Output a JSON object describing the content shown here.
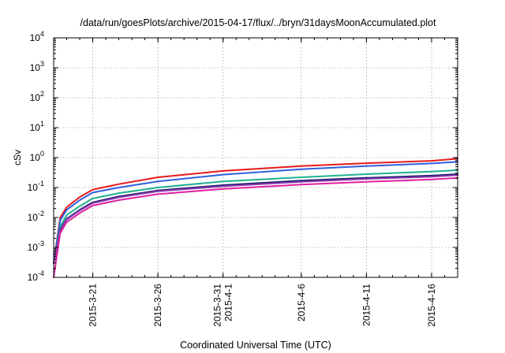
{
  "chart_data": {
    "type": "line",
    "title": "/data/run/goesPlots/archive/2015-04-17/flux/../bryn/31daysMoonAccumulated.plot",
    "xlabel": "Coordinated Universal Time (UTC)",
    "ylabel": "cSv",
    "y_scale": "log",
    "ylim": [
      0.0001,
      10000
    ],
    "xlim": [
      "2015-03-18",
      "2015-04-18"
    ],
    "grid": true,
    "legend": "none",
    "y_ticks": [
      {
        "base": "10",
        "exp": "-4"
      },
      {
        "base": "10",
        "exp": "-3"
      },
      {
        "base": "10",
        "exp": "-2"
      },
      {
        "base": "10",
        "exp": "-1"
      },
      {
        "base": "10",
        "exp": "0"
      },
      {
        "base": "10",
        "exp": "1"
      },
      {
        "base": "10",
        "exp": "2"
      },
      {
        "base": "10",
        "exp": "3"
      },
      {
        "base": "10",
        "exp": "4"
      }
    ],
    "x_ticks": [
      {
        "date": "2015-03-21",
        "lines": [
          "2015-3-21"
        ]
      },
      {
        "date": "2015-03-26",
        "lines": [
          "2015-3-26"
        ]
      },
      {
        "date": "2015-03-31",
        "lines": [
          "2015-3-31",
          "2015-4-1"
        ]
      },
      {
        "date": "2015-04-06",
        "lines": [
          "2015-4-6"
        ]
      },
      {
        "date": "2015-04-11",
        "lines": [
          "2015-4-11"
        ]
      },
      {
        "date": "2015-04-16",
        "lines": [
          "2015-4-16"
        ]
      }
    ],
    "series": [
      {
        "color": "#e8191c",
        "x": [
          "2015-03-18",
          "2015-03-18T12:00",
          "2015-03-19",
          "2015-03-20",
          "2015-03-21",
          "2015-03-23",
          "2015-03-26",
          "2015-03-31",
          "2015-04-06",
          "2015-04-11",
          "2015-04-16",
          "2015-04-18"
        ],
        "y": [
          0.0003,
          0.01,
          0.022,
          0.048,
          0.085,
          0.13,
          0.22,
          0.36,
          0.52,
          0.65,
          0.78,
          0.92
        ]
      },
      {
        "color": "#3060e0",
        "x": [
          "2015-03-18",
          "2015-03-18T12:00",
          "2015-03-19",
          "2015-03-20",
          "2015-03-21",
          "2015-03-23",
          "2015-03-26",
          "2015-03-31",
          "2015-04-06",
          "2015-04-11",
          "2015-04-16",
          "2015-04-18"
        ],
        "y": [
          0.0003,
          0.008,
          0.018,
          0.038,
          0.068,
          0.1,
          0.16,
          0.27,
          0.41,
          0.52,
          0.64,
          0.72
        ]
      },
      {
        "color": "#20b090",
        "x": [
          "2015-03-18",
          "2015-03-18T12:00",
          "2015-03-19",
          "2015-03-20",
          "2015-03-21",
          "2015-03-23",
          "2015-03-26",
          "2015-03-31",
          "2015-04-06",
          "2015-04-11",
          "2015-04-16",
          "2015-04-18"
        ],
        "y": [
          0.0003,
          0.005,
          0.012,
          0.024,
          0.043,
          0.065,
          0.1,
          0.16,
          0.22,
          0.28,
          0.34,
          0.38
        ]
      },
      {
        "color": "#1a1a66",
        "x": [
          "2015-03-18",
          "2015-03-18T12:00",
          "2015-03-19",
          "2015-03-20",
          "2015-03-21",
          "2015-03-23",
          "2015-03-26",
          "2015-03-31",
          "2015-04-06",
          "2015-04-11",
          "2015-04-16",
          "2015-04-18"
        ],
        "y": [
          0.0003,
          0.004,
          0.009,
          0.018,
          0.032,
          0.05,
          0.08,
          0.12,
          0.17,
          0.21,
          0.25,
          0.28
        ]
      },
      {
        "color": "#8a3ab0",
        "x": [
          "2015-03-18",
          "2015-03-18T12:00",
          "2015-03-19",
          "2015-03-20",
          "2015-03-21",
          "2015-03-23",
          "2015-03-26",
          "2015-03-31",
          "2015-04-06",
          "2015-04-11",
          "2015-04-16",
          "2015-04-18"
        ],
        "y": [
          0.0003,
          0.0037,
          0.0085,
          0.017,
          0.03,
          0.047,
          0.075,
          0.11,
          0.155,
          0.195,
          0.23,
          0.26
        ]
      },
      {
        "color": "#e020a0",
        "x": [
          "2015-03-18",
          "2015-03-18T12:00",
          "2015-03-19",
          "2015-03-20",
          "2015-03-21",
          "2015-03-23",
          "2015-03-26",
          "2015-03-31",
          "2015-04-06",
          "2015-04-11",
          "2015-04-16",
          "2015-04-18"
        ],
        "y": [
          0.0001,
          0.003,
          0.007,
          0.014,
          0.025,
          0.038,
          0.06,
          0.09,
          0.125,
          0.155,
          0.185,
          0.21
        ]
      }
    ]
  }
}
